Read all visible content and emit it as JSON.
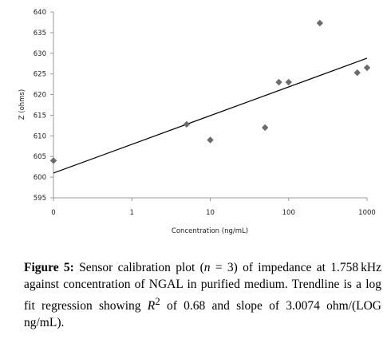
{
  "chart_data": {
    "type": "scatter",
    "x_scale": "log",
    "xlabel": "Concentration (ng/mL)",
    "ylabel": "Z (ohms)",
    "ylim": [
      595,
      640
    ],
    "y_ticks": [
      "640",
      "635",
      "630",
      "625",
      "620",
      "615",
      "610",
      "605",
      "600",
      "595"
    ],
    "x_ticks": [
      "0",
      "1",
      "10",
      "100",
      "1000"
    ],
    "grid": false,
    "marker_color": "#6b6b6b",
    "series": [
      {
        "points": [
          {
            "x": 0,
            "y": 604
          },
          {
            "x": 5,
            "y": 612.8
          },
          {
            "x": 10,
            "y": 609
          },
          {
            "x": 50,
            "y": 612
          },
          {
            "x": 75,
            "y": 623
          },
          {
            "x": 100,
            "y": 623
          },
          {
            "x": 250,
            "y": 637.3
          },
          {
            "x": 750,
            "y": 625.3
          },
          {
            "x": 1000,
            "y": 626.5
          }
        ]
      }
    ],
    "trendline": {
      "type": "log",
      "from": [
        0,
        601
      ],
      "to": [
        1000,
        628.8
      ],
      "color": "#000000"
    }
  },
  "caption": {
    "label": "Figure 5:",
    "text_before_n": " Sensor calibration plot (",
    "n_symbol": "n",
    "eq": " = 3) of impedance at 1.758 kHz against concentration of NGAL in purified medium. Trendline is a log fit regression showing ",
    "r_symbol": "R",
    "r_sup": "2",
    "text_end": " of 0.68 and slope of 3.0074 ohm/(LOG ng/mL)."
  }
}
